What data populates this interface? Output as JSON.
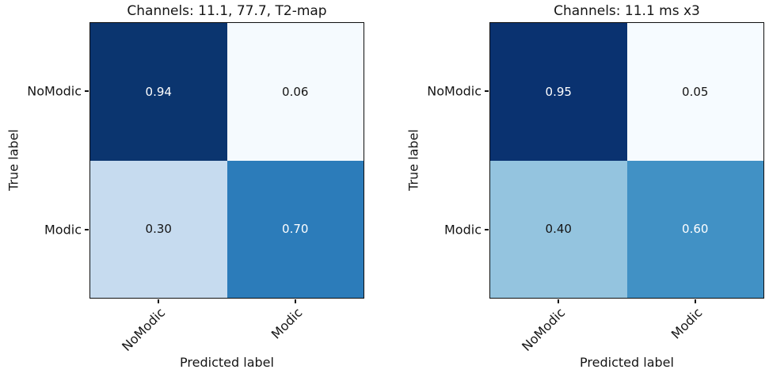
{
  "figure": {
    "background": "#ffffff",
    "colormap": "Blues",
    "spine_color": "#0f0f0f"
  },
  "chart_data": [
    {
      "type": "heatmap",
      "title": "Channels: 11.1, 77.7, T2-map",
      "xlabel": "Predicted label",
      "ylabel": "True label",
      "x_tick_labels": [
        "NoModic",
        "Modic"
      ],
      "y_tick_labels": [
        "NoModic",
        "Modic"
      ],
      "rows": [
        [
          0.94,
          0.06
        ],
        [
          0.3,
          0.7
        ]
      ],
      "cell_labels": [
        [
          "0.94",
          "0.06"
        ],
        [
          "0.30",
          "0.70"
        ]
      ],
      "cell_colors": [
        [
          "#0b356f",
          "#f5fafe"
        ],
        [
          "#c6dbef",
          "#2c7cba"
        ]
      ],
      "cell_text_colors": [
        [
          "#ffffff",
          "#151515"
        ],
        [
          "#151515",
          "#ffffff"
        ]
      ],
      "value_range": [
        0,
        1
      ],
      "legend": "none",
      "grid": false
    },
    {
      "type": "heatmap",
      "title": "Channels: 11.1 ms x3",
      "xlabel": "Predicted label",
      "ylabel": "True label",
      "x_tick_labels": [
        "NoModic",
        "Modic"
      ],
      "y_tick_labels": [
        "NoModic",
        "Modic"
      ],
      "rows": [
        [
          0.95,
          0.05
        ],
        [
          0.4,
          0.6
        ]
      ],
      "cell_labels": [
        [
          "0.95",
          "0.05"
        ],
        [
          "0.40",
          "0.60"
        ]
      ],
      "cell_colors": [
        [
          "#0a3270",
          "#f6fbff"
        ],
        [
          "#94c4df",
          "#4191c5"
        ]
      ],
      "cell_text_colors": [
        [
          "#ffffff",
          "#151515"
        ],
        [
          "#151515",
          "#ffffff"
        ]
      ],
      "value_range": [
        0,
        1
      ],
      "legend": "none",
      "grid": false
    }
  ]
}
